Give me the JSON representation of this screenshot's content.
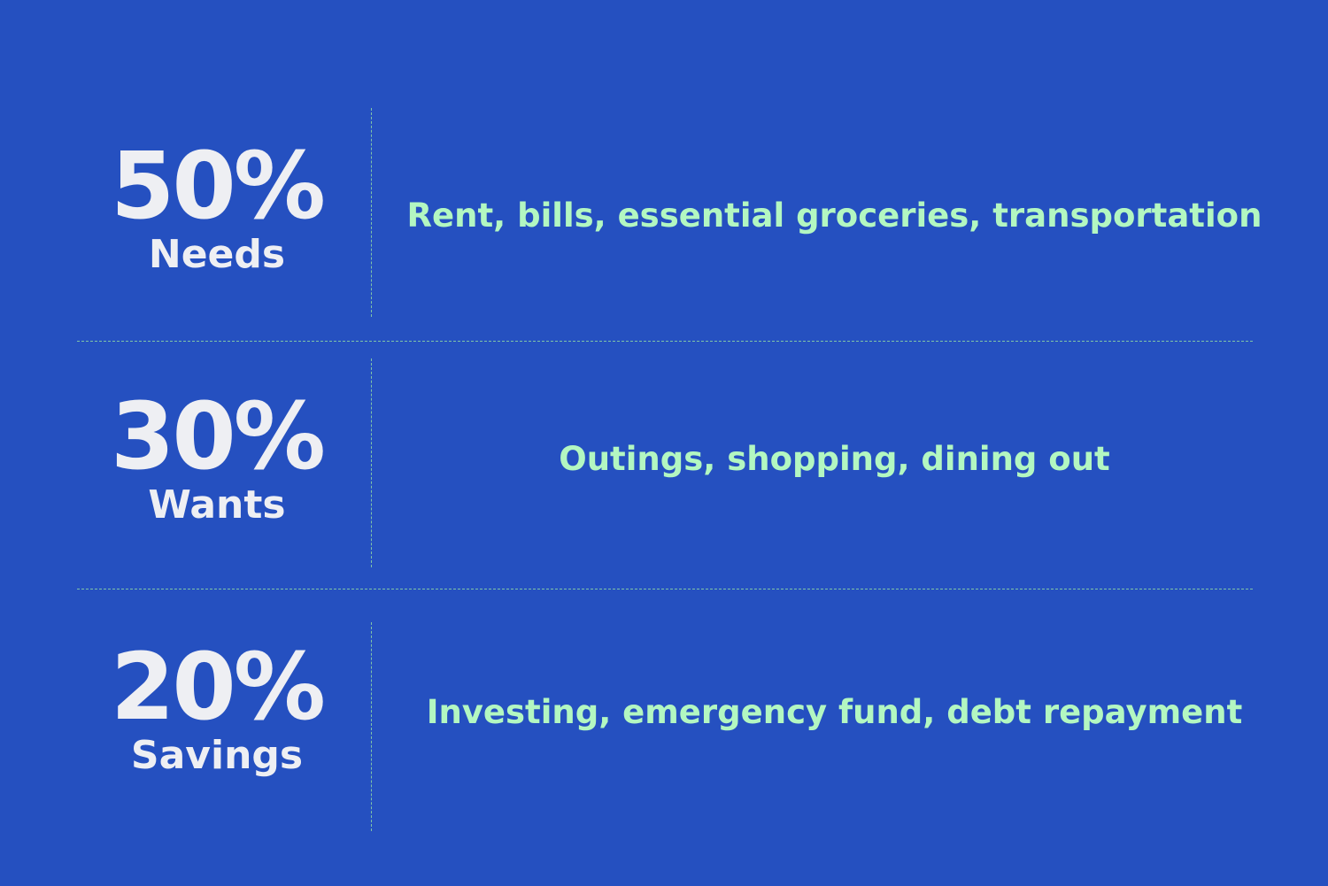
{
  "colors": {
    "background": "#2550c0",
    "percent_text": "#eeeff3",
    "description_text": "#b3f7c1",
    "divider": "#7fc4a8"
  },
  "rows": [
    {
      "percent": "50%",
      "label": "Needs",
      "description": "Rent, bills, essential groceries, transportation"
    },
    {
      "percent": "30%",
      "label": "Wants",
      "description": "Outings, shopping, dining out"
    },
    {
      "percent": "20%",
      "label": "Savings",
      "description": "Investing, emergency fund, debt repayment"
    }
  ]
}
